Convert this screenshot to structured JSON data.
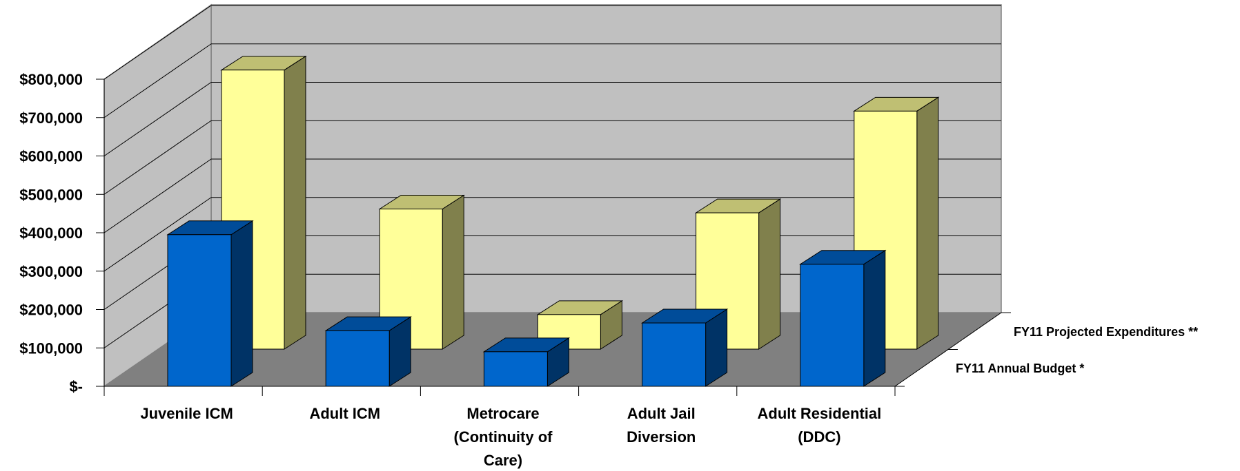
{
  "chart_data": {
    "type": "bar",
    "subtype": "3d-clustered-depth",
    "title": "",
    "xlabel": "",
    "ylabel": "",
    "ylim": [
      0,
      800000
    ],
    "y_ticks": [
      0,
      100000,
      200000,
      300000,
      400000,
      500000,
      600000,
      700000,
      800000
    ],
    "y_tick_labels": [
      "$-",
      "$100,000",
      "$200,000",
      "$300,000",
      "$400,000",
      "$500,000",
      "$600,000",
      "$700,000",
      "$800,000"
    ],
    "grid": true,
    "categories": [
      [
        "Juvenile ICM"
      ],
      [
        "Adult ICM"
      ],
      [
        "Metrocare",
        "(Continuity of",
        "Care)"
      ],
      [
        "Adult Jail",
        "Diversion"
      ],
      [
        "Adult Residential",
        "(DDC)"
      ]
    ],
    "series": [
      {
        "name": "FY11 Annual Budget *",
        "color": "#0066CC",
        "values": [
          395000,
          145000,
          90000,
          165000,
          318000
        ]
      },
      {
        "name": "FY11 Projected Expenditures **",
        "color": "#FFFF99",
        "values": [
          727000,
          365000,
          90000,
          355000,
          620000
        ]
      }
    ],
    "colors": {
      "back_wall": "#C0C0C0",
      "side_wall": "#C0C0C0",
      "floor": "#808080",
      "grid": "#000000",
      "blue_front": "#0066CC",
      "blue_top": "#004C99",
      "blue_side": "#003366",
      "yellow_front": "#FFFF99",
      "yellow_top": "#BFBF73",
      "yellow_side": "#80804C"
    }
  }
}
